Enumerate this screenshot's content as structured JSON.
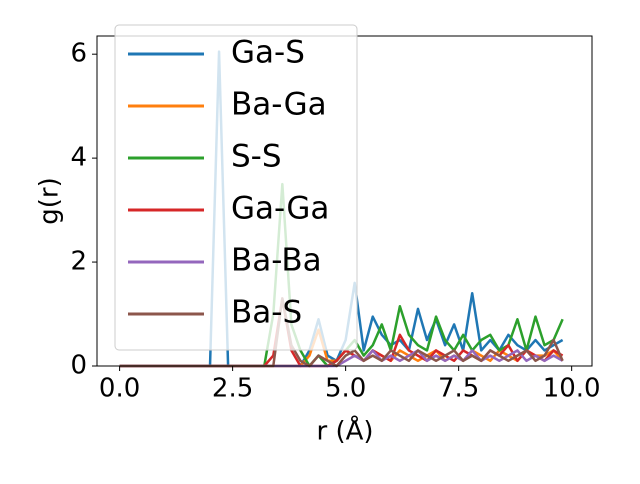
{
  "chart_data": {
    "type": "line",
    "x_label": "r (Å)",
    "y_label": "g(r)",
    "x": [
      0.0,
      0.2,
      0.4,
      0.6,
      0.8,
      1.0,
      1.2,
      1.4,
      1.6,
      1.8,
      2.0,
      2.2,
      2.4,
      2.6,
      2.8,
      3.0,
      3.2,
      3.4,
      3.6,
      3.8,
      4.0,
      4.2,
      4.4,
      4.6,
      4.8,
      5.0,
      5.2,
      5.4,
      5.6,
      5.8,
      6.0,
      6.2,
      6.4,
      6.6,
      6.8,
      7.0,
      7.2,
      7.4,
      7.6,
      7.8,
      8.0,
      8.2,
      8.4,
      8.6,
      8.8,
      9.0,
      9.2,
      9.4,
      9.6,
      9.8
    ],
    "series": [
      {
        "name": "Ga-S",
        "color": "#1f77b4",
        "values": [
          0,
          0,
          0,
          0,
          0,
          0,
          0,
          0,
          0,
          0,
          0,
          6.05,
          0,
          0,
          0,
          0,
          0,
          0,
          0,
          0,
          0,
          0.3,
          0.9,
          0.2,
          0.1,
          0.5,
          1.6,
          0.3,
          0.95,
          0.6,
          0.4,
          0.5,
          0.3,
          1.1,
          0.5,
          0.9,
          0.4,
          0.8,
          0.3,
          1.4,
          0.3,
          0.5,
          0.3,
          0.6,
          0.4,
          0.3,
          0.5,
          0.3,
          0.4,
          0.5
        ]
      },
      {
        "name": "Ba-Ga",
        "color": "#ff7f0e",
        "values": [
          0,
          0,
          0,
          0,
          0,
          0,
          0,
          0,
          0,
          0,
          0,
          0,
          0,
          0,
          0,
          0,
          0,
          0,
          0,
          0,
          0,
          0.2,
          0.7,
          0.1,
          0.1,
          0.3,
          0.2,
          0.1,
          0.3,
          0.2,
          0.1,
          0.3,
          0.2,
          0.1,
          0.2,
          0.3,
          0.1,
          0.2,
          0.1,
          0.3,
          0.2,
          0.1,
          0.3,
          0.2,
          0.1,
          0.3,
          0.2,
          0.2,
          0.3,
          0.1
        ]
      },
      {
        "name": "S-S",
        "color": "#2ca02c",
        "values": [
          0,
          0,
          0,
          0,
          0,
          0,
          0,
          0,
          0,
          0,
          0,
          0,
          0,
          0,
          0,
          0,
          0,
          1.0,
          3.5,
          0.8,
          0.3,
          0,
          0.2,
          0,
          0.1,
          0.3,
          0.5,
          0.2,
          0.4,
          0.8,
          0.3,
          1.15,
          0.6,
          0.4,
          0.3,
          0.95,
          0.5,
          0.3,
          0.6,
          0.3,
          0.5,
          0.6,
          0.3,
          0.4,
          0.9,
          0.3,
          0.95,
          0.4,
          0.5,
          0.9
        ]
      },
      {
        "name": "Ga-Ga",
        "color": "#d62728",
        "values": [
          0,
          0,
          0,
          0,
          0,
          0,
          0,
          0,
          0,
          0,
          0,
          0,
          0,
          0,
          0,
          0,
          0,
          0.2,
          1.3,
          0.3,
          0,
          0,
          0,
          0,
          0.1,
          0.3,
          0.2,
          0.1,
          0.3,
          0.2,
          0.1,
          0.6,
          0.3,
          0.2,
          0.1,
          0.3,
          0.2,
          0.1,
          0.3,
          0.2,
          0.1,
          0.3,
          0.2,
          0.4,
          0.1,
          0.3,
          0.2,
          0.1,
          0.3,
          0.2
        ]
      },
      {
        "name": "Ba-Ba",
        "color": "#9467bd",
        "values": [
          0,
          0,
          0,
          0,
          0,
          0,
          0,
          0,
          0,
          0,
          0,
          0,
          0,
          0,
          0,
          0,
          0,
          0,
          0,
          0,
          0,
          0,
          0,
          0,
          0,
          0.1,
          0.2,
          0.1,
          0.3,
          0.1,
          0.2,
          0.1,
          0.2,
          0.3,
          0.1,
          0.2,
          0.1,
          0.2,
          0.1,
          0.3,
          0.1,
          0.2,
          0.1,
          0.2,
          0.3,
          0.1,
          0.2,
          0.1,
          0.2,
          0.1
        ]
      },
      {
        "name": "Ba-S",
        "color": "#8c564b",
        "values": [
          0,
          0,
          0,
          0,
          0,
          0,
          0,
          0,
          0,
          0,
          0,
          0,
          0,
          0,
          0,
          0,
          0,
          0,
          1.3,
          0.4,
          0.1,
          0,
          0.2,
          0.1,
          0,
          0.2,
          0.3,
          0.1,
          0.2,
          0.1,
          0.3,
          0.2,
          0.1,
          0.3,
          0.2,
          0.1,
          0.2,
          0.3,
          0.1,
          0.2,
          0.1,
          0.3,
          0.2,
          0.1,
          0.2,
          0.3,
          0.1,
          0.2,
          0.5,
          0.1
        ]
      }
    ],
    "xlim": [
      -0.5,
      10.45
    ],
    "ylim": [
      0,
      6.35
    ],
    "xticks": [
      {
        "value": 0,
        "label": "0.0"
      },
      {
        "value": 2.5,
        "label": "2.5"
      },
      {
        "value": 5,
        "label": "5.0"
      },
      {
        "value": 7.5,
        "label": "7.5"
      },
      {
        "value": 10,
        "label": "10.0"
      }
    ],
    "yticks": [
      0,
      2,
      4,
      6
    ],
    "legend": "upper left"
  }
}
